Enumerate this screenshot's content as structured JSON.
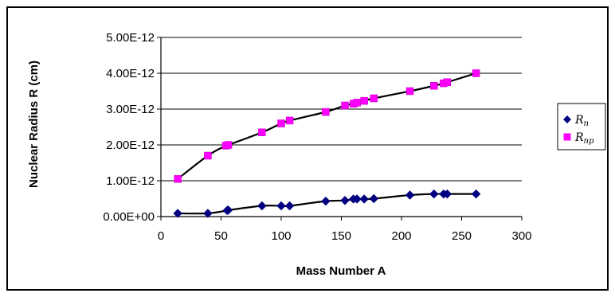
{
  "chart_data": {
    "type": "scatter",
    "xlabel": "Mass Number A",
    "ylabel": "Nuclear Radius R (cm)",
    "xlim": [
      0,
      300
    ],
    "ylim": [
      0,
      5e-12
    ],
    "x_ticks": [
      0,
      50,
      100,
      150,
      200,
      250,
      300
    ],
    "x_tick_labels": [
      "0",
      "50",
      "100",
      "150",
      "200",
      "250",
      "300"
    ],
    "y_ticks": [
      0,
      1e-12,
      2e-12,
      3e-12,
      4e-12,
      5e-12
    ],
    "y_tick_labels": [
      "0.00E+00",
      "1.00E-12",
      "2.00E-12",
      "3.00E-12",
      "4.00E-12",
      "5.00E-12"
    ],
    "grid": "horizontal",
    "legend_position": "right",
    "series": [
      {
        "name": "R",
        "subscript": "n",
        "marker": "diamond",
        "color": "#000080",
        "x": [
          14,
          39,
          55,
          56,
          84,
          100,
          107,
          137,
          153,
          160,
          163,
          169,
          177,
          207,
          227,
          235,
          238,
          262
        ],
        "y": [
          9e-14,
          9e-14,
          1.7e-13,
          1.8e-13,
          3e-13,
          3e-13,
          3e-13,
          4.3e-13,
          4.5e-13,
          4.9e-13,
          4.9e-13,
          4.9e-13,
          5e-13,
          6e-13,
          6.3e-13,
          6.3e-13,
          6.3e-13,
          6.3e-13
        ]
      },
      {
        "name": "R",
        "subscript": "np",
        "marker": "square",
        "color": "#FF00FF",
        "x": [
          14,
          39,
          54,
          56,
          84,
          100,
          107,
          137,
          153,
          160,
          163,
          169,
          177,
          207,
          227,
          235,
          238,
          262
        ],
        "y": [
          1.05e-12,
          1.7e-12,
          1.98e-12,
          2e-12,
          2.35e-12,
          2.6e-12,
          2.68e-12,
          2.92e-12,
          3.1e-12,
          3.15e-12,
          3.18e-12,
          3.23e-12,
          3.3e-12,
          3.5e-12,
          3.65e-12,
          3.72e-12,
          3.75e-12,
          4e-12
        ]
      }
    ]
  }
}
